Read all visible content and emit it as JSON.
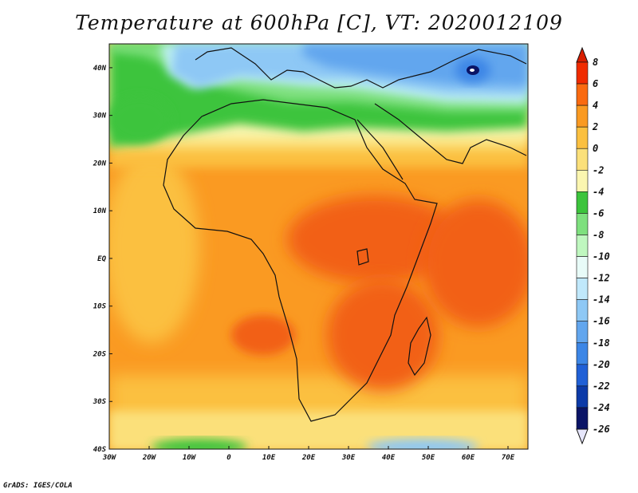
{
  "title": "Temperature at 600hPa [C], VT: 2020012109",
  "footer": "GrADS: IGES/COLA",
  "map": {
    "lon_range": [
      -30,
      75
    ],
    "lat_range": [
      -40,
      45
    ],
    "x_ticks": [
      "30W",
      "20W",
      "10W",
      "0",
      "10E",
      "20E",
      "30E",
      "40E",
      "50E",
      "60E",
      "70E"
    ],
    "y_ticks": [
      "40N",
      "30N",
      "20N",
      "10N",
      "EQ",
      "10S",
      "20S",
      "30S",
      "40S"
    ]
  },
  "colorbar": {
    "labels": [
      "8",
      "6",
      "4",
      "2",
      "0",
      "-2",
      "-4",
      "-6",
      "-8",
      "-10",
      "-12",
      "-14",
      "-16",
      "-18",
      "-20",
      "-22",
      "-24",
      "-26"
    ],
    "colors": [
      "#f02b00",
      "#fa6a10",
      "#fa9a22",
      "#fbc040",
      "#fbe07a",
      "#fbf6b0",
      "#3cc43c",
      "#7ee07e",
      "#bff7bf",
      "#e8fbf8",
      "#c0e8fb",
      "#8ec8f5",
      "#62a6ee",
      "#3c86e6",
      "#2060d6",
      "#0c3aa8",
      "#0a1466"
    ]
  },
  "colors": {
    "warm_dark": "#f26018",
    "warm": "#fa9a22",
    "warm_light": "#fbc040",
    "yellow": "#fbe07a",
    "pale_yellow": "#fbf6b0",
    "green": "#3cc43c",
    "light_green": "#7ee07e",
    "cool_light": "#bdf0f0",
    "blue_light": "#8ec8f5",
    "blue": "#62a6ee",
    "blue_dark": "#3c86e6"
  }
}
